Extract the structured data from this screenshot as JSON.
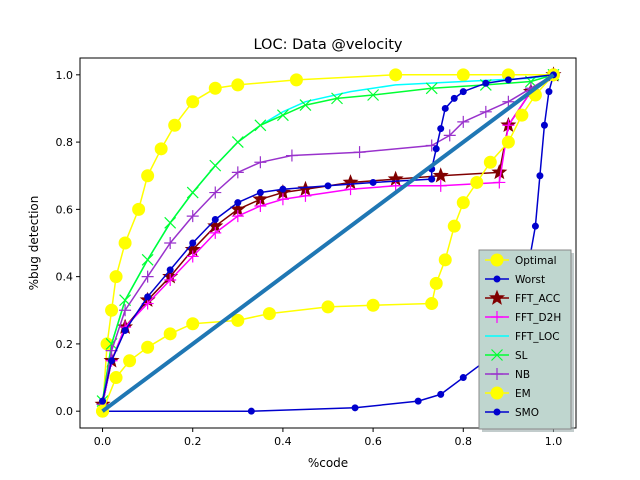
{
  "chart_data": {
    "type": "line",
    "title": "LOC: Data @velocity",
    "xlabel": "%code",
    "ylabel": "%bug detection",
    "xlim": [
      -0.05,
      1.05
    ],
    "ylim": [
      -0.05,
      1.05
    ],
    "xticks": [
      0.0,
      0.2,
      0.4,
      0.6,
      0.8,
      1.0
    ],
    "yticks": [
      0.0,
      0.2,
      0.4,
      0.6,
      0.8,
      1.0
    ],
    "xtick_labels": [
      "0.0",
      "0.2",
      "0.4",
      "0.6",
      "0.8",
      "1.0"
    ],
    "ytick_labels": [
      "0.0",
      "0.2",
      "0.4",
      "0.6",
      "0.8",
      "1.0"
    ],
    "grid": false,
    "legend_position": "lower-right",
    "legend_entries": [
      "Optimal",
      "Worst",
      "FFT_ACC",
      "FFT_D2H",
      "FFT_LOC",
      "SL",
      "NB",
      "EM",
      "SMO"
    ],
    "series": [
      {
        "name": "Optimal",
        "color": "#ffff00",
        "marker": "circle",
        "points": [
          [
            0.0,
            0.0
          ],
          [
            0.01,
            0.2
          ],
          [
            0.02,
            0.3
          ],
          [
            0.03,
            0.4
          ],
          [
            0.05,
            0.5
          ],
          [
            0.08,
            0.6
          ],
          [
            0.1,
            0.7
          ],
          [
            0.13,
            0.78
          ],
          [
            0.16,
            0.85
          ],
          [
            0.2,
            0.92
          ],
          [
            0.25,
            0.96
          ],
          [
            0.3,
            0.97
          ],
          [
            0.43,
            0.985
          ],
          [
            0.65,
            1.0
          ],
          [
            0.8,
            1.0
          ],
          [
            0.9,
            1.0
          ],
          [
            1.0,
            1.0
          ]
        ]
      },
      {
        "name": "Worst",
        "color": "#0000cd",
        "marker": "circle",
        "points": [
          [
            0.0,
            0.0
          ],
          [
            0.33,
            0.0
          ],
          [
            0.56,
            0.01
          ],
          [
            0.7,
            0.03
          ],
          [
            0.75,
            0.05
          ],
          [
            0.8,
            0.1
          ],
          [
            0.85,
            0.15
          ],
          [
            0.88,
            0.2
          ],
          [
            0.91,
            0.27
          ],
          [
            0.94,
            0.4
          ],
          [
            0.96,
            0.55
          ],
          [
            0.97,
            0.7
          ],
          [
            0.98,
            0.85
          ],
          [
            0.99,
            0.95
          ],
          [
            1.0,
            1.0
          ]
        ]
      },
      {
        "name": "FFT_ACC",
        "color": "#800000",
        "marker": "star",
        "points": [
          [
            0.0,
            0.02
          ],
          [
            0.02,
            0.15
          ],
          [
            0.05,
            0.25
          ],
          [
            0.1,
            0.33
          ],
          [
            0.15,
            0.4
          ],
          [
            0.2,
            0.48
          ],
          [
            0.25,
            0.55
          ],
          [
            0.3,
            0.6
          ],
          [
            0.35,
            0.63
          ],
          [
            0.4,
            0.65
          ],
          [
            0.45,
            0.66
          ],
          [
            0.55,
            0.68
          ],
          [
            0.65,
            0.69
          ],
          [
            0.75,
            0.7
          ],
          [
            0.88,
            0.71
          ],
          [
            0.9,
            0.85
          ],
          [
            0.95,
            0.95
          ],
          [
            1.0,
            1.0
          ]
        ]
      },
      {
        "name": "FFT_D2H",
        "color": "#ff00ff",
        "marker": "plus",
        "points": [
          [
            0.0,
            0.02
          ],
          [
            0.02,
            0.15
          ],
          [
            0.05,
            0.25
          ],
          [
            0.1,
            0.32
          ],
          [
            0.15,
            0.39
          ],
          [
            0.2,
            0.46
          ],
          [
            0.25,
            0.53
          ],
          [
            0.3,
            0.58
          ],
          [
            0.35,
            0.61
          ],
          [
            0.4,
            0.63
          ],
          [
            0.45,
            0.64
          ],
          [
            0.55,
            0.66
          ],
          [
            0.65,
            0.67
          ],
          [
            0.75,
            0.67
          ],
          [
            0.88,
            0.68
          ],
          [
            0.9,
            0.85
          ],
          [
            0.95,
            0.95
          ],
          [
            1.0,
            1.0
          ]
        ]
      },
      {
        "name": "FFT_LOC",
        "color": "#00ffff",
        "marker": "none",
        "points": [
          [
            0.0,
            0.03
          ],
          [
            0.02,
            0.2
          ],
          [
            0.05,
            0.33
          ],
          [
            0.1,
            0.45
          ],
          [
            0.15,
            0.56
          ],
          [
            0.2,
            0.65
          ],
          [
            0.25,
            0.73
          ],
          [
            0.3,
            0.8
          ],
          [
            0.35,
            0.85
          ],
          [
            0.4,
            0.89
          ],
          [
            0.45,
            0.92
          ],
          [
            0.55,
            0.95
          ],
          [
            0.65,
            0.97
          ],
          [
            0.8,
            0.98
          ],
          [
            0.95,
            0.99
          ],
          [
            1.0,
            1.0
          ]
        ]
      },
      {
        "name": "SL",
        "color": "#00ff33",
        "marker": "x",
        "points": [
          [
            0.0,
            0.03
          ],
          [
            0.02,
            0.2
          ],
          [
            0.05,
            0.33
          ],
          [
            0.1,
            0.45
          ],
          [
            0.15,
            0.56
          ],
          [
            0.2,
            0.65
          ],
          [
            0.25,
            0.73
          ],
          [
            0.3,
            0.8
          ],
          [
            0.35,
            0.85
          ],
          [
            0.4,
            0.88
          ],
          [
            0.45,
            0.91
          ],
          [
            0.52,
            0.93
          ],
          [
            0.6,
            0.94
          ],
          [
            0.73,
            0.96
          ],
          [
            0.85,
            0.97
          ],
          [
            0.95,
            0.98
          ],
          [
            1.0,
            1.0
          ]
        ]
      },
      {
        "name": "NB",
        "color": "#9932cc",
        "marker": "plus",
        "points": [
          [
            0.0,
            0.02
          ],
          [
            0.02,
            0.18
          ],
          [
            0.05,
            0.3
          ],
          [
            0.1,
            0.4
          ],
          [
            0.15,
            0.5
          ],
          [
            0.2,
            0.58
          ],
          [
            0.25,
            0.65
          ],
          [
            0.3,
            0.71
          ],
          [
            0.35,
            0.74
          ],
          [
            0.42,
            0.76
          ],
          [
            0.57,
            0.77
          ],
          [
            0.73,
            0.79
          ],
          [
            0.77,
            0.82
          ],
          [
            0.8,
            0.86
          ],
          [
            0.85,
            0.89
          ],
          [
            0.9,
            0.92
          ],
          [
            0.95,
            0.96
          ],
          [
            1.0,
            1.0
          ]
        ]
      },
      {
        "name": "EM",
        "color": "#ffff00",
        "marker": "circle",
        "points": [
          [
            0.0,
            0.0
          ],
          [
            0.03,
            0.1
          ],
          [
            0.06,
            0.15
          ],
          [
            0.1,
            0.19
          ],
          [
            0.15,
            0.23
          ],
          [
            0.2,
            0.26
          ],
          [
            0.3,
            0.27
          ],
          [
            0.37,
            0.29
          ],
          [
            0.5,
            0.31
          ],
          [
            0.6,
            0.315
          ],
          [
            0.73,
            0.32
          ],
          [
            0.74,
            0.38
          ],
          [
            0.76,
            0.45
          ],
          [
            0.78,
            0.55
          ],
          [
            0.8,
            0.62
          ],
          [
            0.83,
            0.68
          ],
          [
            0.86,
            0.74
          ],
          [
            0.9,
            0.8
          ],
          [
            0.93,
            0.88
          ],
          [
            0.96,
            0.94
          ],
          [
            1.0,
            1.0
          ]
        ]
      },
      {
        "name": "SMO",
        "color": "#0000cd",
        "marker": "circle",
        "points": [
          [
            0.0,
            0.03
          ],
          [
            0.02,
            0.15
          ],
          [
            0.05,
            0.24
          ],
          [
            0.1,
            0.34
          ],
          [
            0.15,
            0.42
          ],
          [
            0.2,
            0.5
          ],
          [
            0.25,
            0.57
          ],
          [
            0.3,
            0.62
          ],
          [
            0.35,
            0.65
          ],
          [
            0.4,
            0.66
          ],
          [
            0.5,
            0.67
          ],
          [
            0.6,
            0.68
          ],
          [
            0.73,
            0.69
          ],
          [
            0.73,
            0.72
          ],
          [
            0.74,
            0.78
          ],
          [
            0.75,
            0.84
          ],
          [
            0.76,
            0.9
          ],
          [
            0.78,
            0.93
          ],
          [
            0.8,
            0.95
          ],
          [
            0.85,
            0.975
          ],
          [
            0.9,
            0.985
          ],
          [
            1.0,
            1.0
          ]
        ]
      },
      {
        "name": "",
        "color": "#1f77b4",
        "marker": "none",
        "points": [
          [
            0.0,
            0.0
          ],
          [
            1.0,
            1.0
          ]
        ]
      }
    ]
  }
}
